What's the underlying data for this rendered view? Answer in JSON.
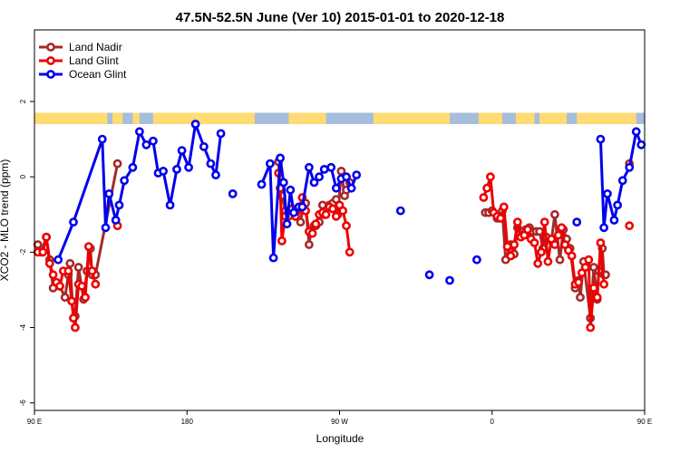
{
  "chart_data": {
    "type": "line",
    "title": "47.5N-52.5N June (Ver 10)   2015-01-01 to 2020-12-18",
    "xlabel": "Longitude",
    "ylabel": "XCO2 - MLO trend (ppm)",
    "xlim": [
      90,
      450
    ],
    "ylim": [
      -6.2,
      3.9
    ],
    "x_ticks": [
      {
        "value": 90,
        "label": "90 E"
      },
      {
        "value": 180,
        "label": "180"
      },
      {
        "value": 270,
        "label": "90 W"
      },
      {
        "value": 360,
        "label": "0"
      },
      {
        "value": 450,
        "label": "90 E"
      },
      {
        "value": 540,
        "label": "180"
      }
    ],
    "y_ticks": [
      {
        "value": -6,
        "label": "-6"
      },
      {
        "value": -4,
        "label": "-4"
      },
      {
        "value": -2,
        "label": "-2"
      },
      {
        "value": 0,
        "label": "0"
      },
      {
        "value": 2,
        "label": "2"
      }
    ],
    "legend_position": "top-left",
    "grid": false,
    "land_ocean_band": {
      "y_range": [
        1.4,
        1.7
      ],
      "land_color": "#FFDB73",
      "ocean_color": "#A6BDDB",
      "land_segments": [
        [
          90,
          133
        ],
        [
          136,
          142
        ],
        [
          148,
          152
        ],
        [
          160,
          220
        ],
        [
          240,
          262
        ],
        [
          290,
          335
        ],
        [
          352,
          366
        ],
        [
          374,
          385
        ],
        [
          388,
          404
        ],
        [
          410,
          445
        ],
        [
          467,
          520
        ],
        [
          528,
          537
        ]
      ]
    },
    "series": [
      {
        "name": "Land Nadir",
        "color": "#A52A2A",
        "points": [
          [
            92,
            -1.8
          ],
          [
            94,
            -2.0
          ],
          [
            97,
            -1.6
          ],
          [
            99,
            -2.2
          ],
          [
            101,
            -2.95
          ],
          [
            105,
            -2.9
          ],
          [
            108,
            -3.2
          ],
          [
            110,
            -2.6
          ],
          [
            111,
            -2.3
          ],
          [
            113,
            -3.75
          ],
          [
            114,
            -3.7
          ],
          [
            116,
            -2.4
          ],
          [
            119,
            -3.25
          ],
          [
            121,
            -2.5
          ],
          [
            123,
            -1.9
          ],
          [
            124,
            -2.6
          ],
          [
            126,
            -2.6
          ],
          [
            139,
            0.35
          ],
          [
            0,
            null
          ],
          [
            234,
            0.4
          ],
          [
            235,
            -0.3
          ],
          [
            236,
            -0.5
          ],
          [
            238,
            -0.9
          ],
          [
            240,
            -1.05
          ],
          [
            242,
            -0.85
          ],
          [
            244,
            -1.05
          ],
          [
            247,
            -1.2
          ],
          [
            248,
            -0.9
          ],
          [
            250,
            -0.7
          ],
          [
            252,
            -1.8
          ],
          [
            253,
            -1.5
          ],
          [
            255,
            -1.3
          ],
          [
            256,
            -1.3
          ],
          [
            258,
            -1.2
          ],
          [
            260,
            -0.75
          ],
          [
            261,
            -1.0
          ],
          [
            264,
            -0.75
          ],
          [
            266,
            -0.7
          ],
          [
            268,
            -0.6
          ],
          [
            269,
            -1.0
          ],
          [
            271,
            0.15
          ],
          [
            273,
            -0.5
          ],
          [
            274,
            -0.35
          ],
          [
            276,
            -0.15
          ],
          [
            0,
            null
          ],
          [
            356,
            -0.95
          ],
          [
            358,
            -0.95
          ],
          [
            360,
            -0.9
          ],
          [
            363,
            -1.1
          ],
          [
            366,
            -0.9
          ],
          [
            368,
            -2.2
          ],
          [
            371,
            -1.8
          ],
          [
            373,
            -2.05
          ],
          [
            375,
            -1.35
          ],
          [
            378,
            -1.55
          ],
          [
            380,
            -1.4
          ],
          [
            382,
            -1.35
          ],
          [
            384,
            -1.45
          ],
          [
            386,
            -1.45
          ],
          [
            388,
            -1.45
          ],
          [
            390,
            -1.9
          ],
          [
            392,
            -1.6
          ],
          [
            395,
            -1.7
          ],
          [
            397,
            -1.0
          ],
          [
            400,
            -2.2
          ],
          [
            402,
            -1.4
          ],
          [
            404,
            -1.65
          ],
          [
            406,
            -1.9
          ],
          [
            409,
            -2.95
          ],
          [
            411,
            -2.75
          ],
          [
            412,
            -3.2
          ],
          [
            414,
            -2.25
          ],
          [
            418,
            -3.75
          ],
          [
            420,
            -2.4
          ],
          [
            422,
            -3.25
          ],
          [
            423,
            -2.5
          ],
          [
            425,
            -1.9
          ],
          [
            426,
            -2.6
          ],
          [
            427,
            -2.6
          ],
          [
            0,
            null
          ],
          [
            441,
            0.35
          ]
        ]
      },
      {
        "name": "Land Glint",
        "color": "#EE0000",
        "points": [
          [
            92,
            -2.0
          ],
          [
            95,
            -2.0
          ],
          [
            97,
            -1.6
          ],
          [
            99,
            -2.3
          ],
          [
            101,
            -2.6
          ],
          [
            103,
            -2.8
          ],
          [
            105,
            -2.9
          ],
          [
            107,
            -2.5
          ],
          [
            110,
            -2.5
          ],
          [
            112,
            -3.3
          ],
          [
            113,
            -3.75
          ],
          [
            114,
            -4.0
          ],
          [
            116,
            -2.85
          ],
          [
            118,
            -2.9
          ],
          [
            120,
            -3.2
          ],
          [
            122,
            -1.85
          ],
          [
            124,
            -2.5
          ],
          [
            126,
            -2.85
          ],
          [
            0,
            null
          ],
          [
            139,
            -1.3
          ],
          [
            0,
            null
          ],
          [
            234,
            0.1
          ],
          [
            235,
            -0.3
          ],
          [
            236,
            -1.7
          ],
          [
            238,
            -1.05
          ],
          [
            240,
            -0.9
          ],
          [
            242,
            -0.85
          ],
          [
            244,
            -1.05
          ],
          [
            246,
            -0.85
          ],
          [
            248,
            -0.55
          ],
          [
            250,
            -0.9
          ],
          [
            252,
            -1.45
          ],
          [
            254,
            -1.5
          ],
          [
            256,
            -1.25
          ],
          [
            258,
            -1.0
          ],
          [
            260,
            -0.95
          ],
          [
            262,
            -1.0
          ],
          [
            264,
            -0.8
          ],
          [
            266,
            -0.85
          ],
          [
            268,
            -1.05
          ],
          [
            270,
            -0.75
          ],
          [
            272,
            -0.9
          ],
          [
            274,
            -1.3
          ],
          [
            276,
            -2.0
          ],
          [
            0,
            null
          ],
          [
            355,
            -0.55
          ],
          [
            357,
            -0.3
          ],
          [
            359,
            0.0
          ],
          [
            361,
            -0.95
          ],
          [
            363,
            -1.05
          ],
          [
            365,
            -1.1
          ],
          [
            367,
            -0.8
          ],
          [
            369,
            -1.85
          ],
          [
            371,
            -2.1
          ],
          [
            373,
            -1.8
          ],
          [
            375,
            -1.2
          ],
          [
            377,
            -1.6
          ],
          [
            379,
            -1.55
          ],
          [
            381,
            -1.4
          ],
          [
            383,
            -1.65
          ],
          [
            385,
            -1.75
          ],
          [
            387,
            -2.3
          ],
          [
            389,
            -2.0
          ],
          [
            391,
            -1.2
          ],
          [
            393,
            -2.25
          ],
          [
            395,
            -1.65
          ],
          [
            397,
            -1.8
          ],
          [
            399,
            -1.55
          ],
          [
            401,
            -1.35
          ],
          [
            403,
            -1.8
          ],
          [
            405,
            -1.95
          ],
          [
            407,
            -2.1
          ],
          [
            409,
            -2.85
          ],
          [
            411,
            -2.8
          ],
          [
            413,
            -2.55
          ],
          [
            415,
            -2.4
          ],
          [
            417,
            -2.2
          ],
          [
            418,
            -4.0
          ],
          [
            420,
            -2.95
          ],
          [
            422,
            -3.2
          ],
          [
            424,
            -1.75
          ],
          [
            426,
            -2.85
          ],
          [
            0,
            null
          ],
          [
            441,
            -1.3
          ]
        ]
      },
      {
        "name": "Ocean Glint",
        "color": "#0000EE",
        "points": [
          [
            104,
            -2.2
          ],
          [
            113,
            -1.2
          ],
          [
            130,
            1.0
          ],
          [
            132,
            -1.35
          ],
          [
            134,
            -0.45
          ],
          [
            138,
            -1.15
          ],
          [
            140,
            -0.75
          ],
          [
            143,
            -0.1
          ],
          [
            148,
            0.25
          ],
          [
            152,
            1.2
          ],
          [
            156,
            0.85
          ],
          [
            160,
            0.95
          ],
          [
            163,
            0.1
          ],
          [
            166,
            0.15
          ],
          [
            170,
            -0.75
          ],
          [
            174,
            0.2
          ],
          [
            177,
            0.7
          ],
          [
            181,
            0.25
          ],
          [
            185,
            1.4
          ],
          [
            190,
            0.8
          ],
          [
            194,
            0.35
          ],
          [
            197,
            0.05
          ],
          [
            200,
            1.15
          ],
          [
            0,
            null
          ],
          [
            207,
            -0.45
          ],
          [
            0,
            null
          ],
          [
            224,
            -0.2
          ],
          [
            229,
            0.35
          ],
          [
            231,
            -2.15
          ],
          [
            235,
            0.5
          ],
          [
            237,
            -0.15
          ],
          [
            239,
            -1.25
          ],
          [
            241,
            -0.35
          ],
          [
            243,
            -0.95
          ],
          [
            246,
            -0.8
          ],
          [
            248,
            -0.8
          ],
          [
            252,
            0.25
          ],
          [
            255,
            -0.15
          ],
          [
            258,
            0.0
          ],
          [
            261,
            0.2
          ],
          [
            265,
            0.25
          ],
          [
            268,
            -0.3
          ],
          [
            271,
            -0.05
          ],
          [
            274,
            0.0
          ],
          [
            277,
            -0.3
          ],
          [
            280,
            0.05
          ],
          [
            0,
            null
          ],
          [
            306,
            -0.9
          ],
          [
            0,
            null
          ],
          [
            323,
            -2.6
          ],
          [
            0,
            null
          ],
          [
            335,
            -2.75
          ],
          [
            0,
            null
          ],
          [
            351,
            -2.2
          ],
          [
            0,
            null
          ],
          [
            410,
            -1.2
          ],
          [
            0,
            null
          ],
          [
            424,
            1.0
          ],
          [
            426,
            -1.35
          ],
          [
            428,
            -0.45
          ],
          [
            432,
            -1.15
          ],
          [
            434,
            -0.75
          ],
          [
            437,
            -0.1
          ],
          [
            441,
            0.25
          ],
          [
            445,
            1.2
          ],
          [
            448,
            0.85
          ]
        ]
      }
    ]
  }
}
